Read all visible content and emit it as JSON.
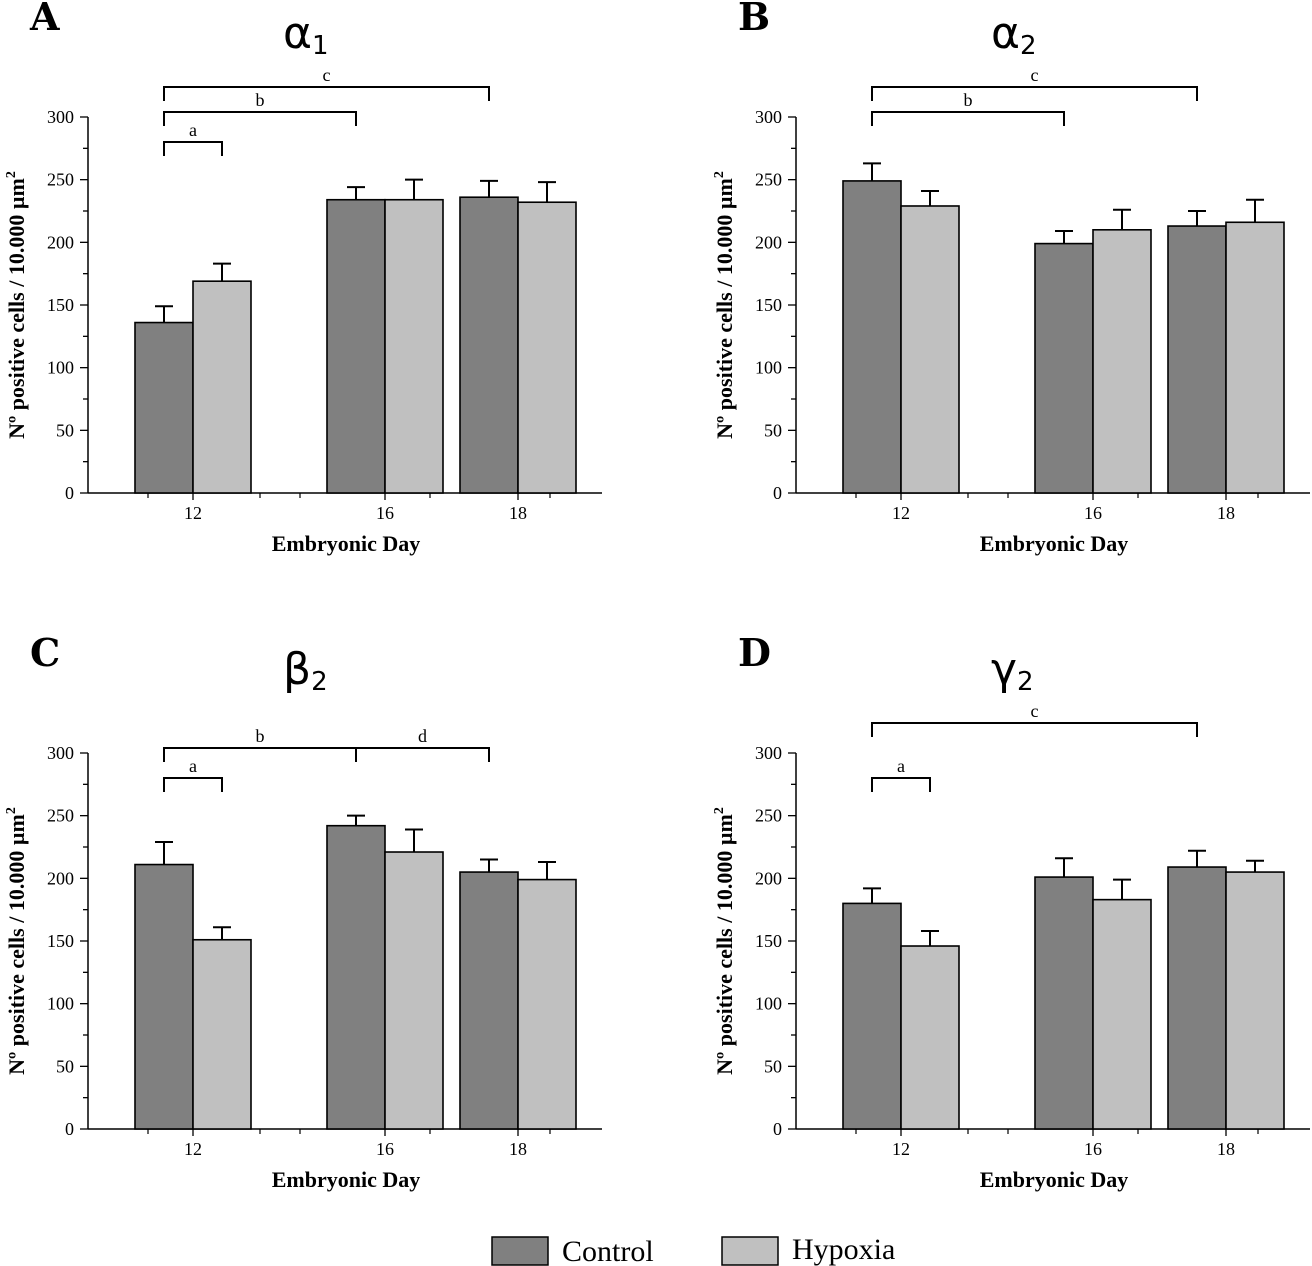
{
  "chart_data": [
    {
      "type": "bar",
      "panel": "A",
      "title": {
        "greek": "α",
        "subscript": "1"
      },
      "categories": [
        "12",
        "16",
        "18"
      ],
      "series": [
        {
          "name": "Control",
          "values": [
            136,
            234,
            236
          ],
          "errors": [
            13,
            10,
            13
          ]
        },
        {
          "name": "Hypoxia",
          "values": [
            169,
            234,
            232
          ],
          "errors": [
            14,
            16,
            16
          ]
        }
      ],
      "xlabel": "Embryonic Day",
      "ylabel": "Nº positive cells / 10.000 µm",
      "ylabel_sup": "2",
      "ylim": [
        0,
        300
      ],
      "yticks": [
        "0",
        "50",
        "100",
        "150",
        "200",
        "250",
        "300"
      ],
      "significance": [
        {
          "label": "a",
          "from": "12",
          "to": "12 Hypoxia",
          "level": 1
        },
        {
          "label": "b",
          "from": "12",
          "to": "16",
          "level": 2
        },
        {
          "label": "c",
          "from": "12",
          "to": "18",
          "level": 3
        }
      ]
    },
    {
      "type": "bar",
      "panel": "B",
      "title": {
        "greek": "α",
        "subscript": "2"
      },
      "categories": [
        "12",
        "16",
        "18"
      ],
      "series": [
        {
          "name": "Control",
          "values": [
            249,
            199,
            213
          ],
          "errors": [
            14,
            10,
            12
          ]
        },
        {
          "name": "Hypoxia",
          "values": [
            229,
            210,
            216
          ],
          "errors": [
            12,
            16,
            18
          ]
        }
      ],
      "xlabel": "Embryonic Day",
      "ylabel": "Nº positive cells / 10.000 µm",
      "ylabel_sup": "2",
      "ylim": [
        0,
        300
      ],
      "yticks": [
        "0",
        "50",
        "100",
        "150",
        "200",
        "250",
        "300"
      ],
      "significance": [
        {
          "label": "b",
          "from": "12",
          "to": "16",
          "level": 2
        },
        {
          "label": "c",
          "from": "12",
          "to": "18",
          "level": 3
        }
      ]
    },
    {
      "type": "bar",
      "panel": "C",
      "title": {
        "greek": "β",
        "subscript": "2"
      },
      "categories": [
        "12",
        "16",
        "18"
      ],
      "series": [
        {
          "name": "Control",
          "values": [
            211,
            242,
            205
          ],
          "errors": [
            18,
            8,
            10
          ]
        },
        {
          "name": "Hypoxia",
          "values": [
            151,
            221,
            199
          ],
          "errors": [
            10,
            18,
            14
          ]
        }
      ],
      "xlabel": "Embryonic Day",
      "ylabel": "Nº positive cells / 10.000 µm",
      "ylabel_sup": "2",
      "ylim": [
        0,
        300
      ],
      "yticks": [
        "0",
        "50",
        "100",
        "150",
        "200",
        "250",
        "300"
      ],
      "significance": [
        {
          "label": "a",
          "from": "12",
          "to": "12 Hypoxia",
          "level": 1
        },
        {
          "label": "b",
          "from": "12",
          "to": "16",
          "level": 2
        },
        {
          "label": "d",
          "from": "16",
          "to": "18",
          "level": 2
        }
      ]
    },
    {
      "type": "bar",
      "panel": "D",
      "title": {
        "greek": "γ",
        "subscript": "2"
      },
      "categories": [
        "12",
        "16",
        "18"
      ],
      "series": [
        {
          "name": "Control",
          "values": [
            180,
            201,
            209
          ],
          "errors": [
            12,
            15,
            13
          ]
        },
        {
          "name": "Hypoxia",
          "values": [
            146,
            183,
            205
          ],
          "errors": [
            12,
            16,
            9
          ]
        }
      ],
      "xlabel": "Embryonic Day",
      "ylabel": "Nº positive cells / 10.000 µm",
      "ylabel_sup": "2",
      "ylim": [
        0,
        300
      ],
      "yticks": [
        "0",
        "50",
        "100",
        "150",
        "200",
        "250",
        "300"
      ],
      "significance": [
        {
          "label": "a",
          "from": "12",
          "to": "12 Hypoxia",
          "level": 1
        },
        {
          "label": "c",
          "from": "12",
          "to": "18",
          "level": 3
        }
      ]
    }
  ],
  "legend": {
    "position": "bottom-center",
    "items": [
      {
        "label": "Control",
        "color": "#808080"
      },
      {
        "label": "Hypoxia",
        "color": "#c0c0c0"
      }
    ]
  },
  "colors": {
    "control": "#808080",
    "hypoxia": "#c0c0c0",
    "axis": "#000000"
  }
}
